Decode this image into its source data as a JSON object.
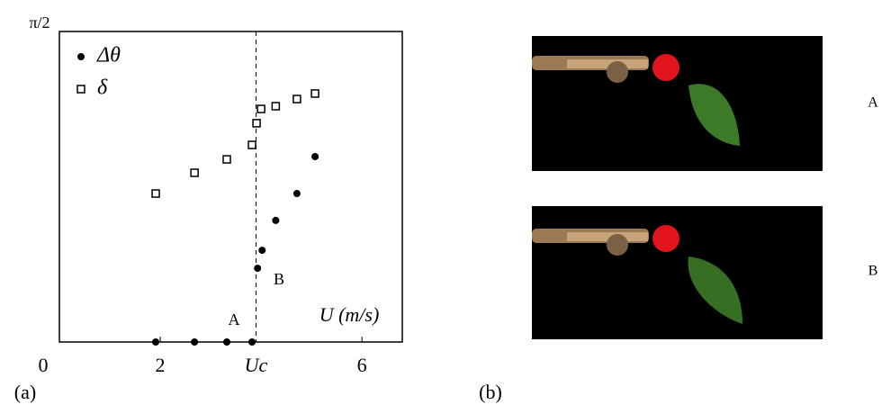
{
  "chart_data": {
    "type": "scatter",
    "x": [
      1.91,
      2.68,
      3.32,
      3.82,
      3.93,
      4.02,
      4.29,
      4.71,
      5.07
    ],
    "series": [
      {
        "name": "Δθ",
        "marker": "circle",
        "color": "#000000",
        "x": [
          1.91,
          2.68,
          3.32,
          3.82,
          3.93,
          4.02,
          4.29,
          4.71,
          5.07
        ],
        "values": [
          0,
          0,
          0,
          0,
          0.373,
          0.464,
          0.615,
          0.751,
          0.938
        ]
      },
      {
        "name": "δ",
        "marker": "square",
        "color": "#000000",
        "x": [
          1.91,
          2.68,
          3.32,
          3.82,
          3.91,
          4.0,
          4.29,
          4.71,
          5.07
        ],
        "values": [
          0.751,
          0.856,
          0.924,
          0.997,
          1.107,
          1.179,
          1.193,
          1.229,
          1.257
        ]
      }
    ],
    "xlim": [
      0,
      6.8
    ],
    "ylim": [
      0,
      1.5708
    ],
    "xticks": [
      0,
      2,
      {
        "value": 3.9,
        "label": "Uc"
      },
      6
    ],
    "yticks": [
      {
        "value": 1.5708,
        "label": "π/2"
      }
    ],
    "xlabel": "U (m/s)",
    "annotations": [
      "A",
      "B"
    ],
    "panel_labels": [
      "(a)",
      "(b)"
    ],
    "image_labels": [
      "A",
      "B"
    ]
  }
}
